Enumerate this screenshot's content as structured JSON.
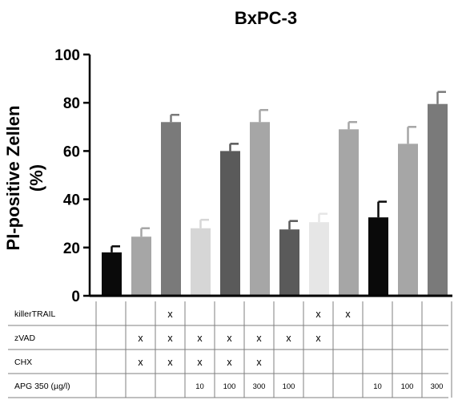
{
  "chart_data": {
    "type": "bar",
    "title": "BxPC-3",
    "ylabel_lines": [
      "PI-positive Zellen",
      "(%)"
    ],
    "ylim": [
      0,
      100
    ],
    "yticks": [
      "0",
      "20",
      "40",
      "60",
      "80",
      "100"
    ],
    "values": [
      18,
      24.5,
      72,
      28,
      60,
      72,
      27.5,
      30.5,
      69,
      32.5,
      63,
      79.5
    ],
    "errors": [
      2.5,
      3.5,
      3,
      3.5,
      3,
      5,
      3.5,
      3.5,
      3,
      6.5,
      7,
      5
    ],
    "colors": [
      "#0a0a0a",
      "#a6a6a6",
      "#7a7a7a",
      "#d6d6d6",
      "#5a5a5a",
      "#a6a6a6",
      "#5a5a5a",
      "#e6e6e6",
      "#a6a6a6",
      "#0a0a0a",
      "#a6a6a6",
      "#7a7a7a"
    ],
    "table": {
      "rows": [
        {
          "label": "killerTRAIL",
          "cells": [
            "",
            "",
            "x",
            "",
            "",
            "",
            "",
            "x",
            "x",
            "",
            "",
            ""
          ]
        },
        {
          "label": "zVAD",
          "cells": [
            "",
            "x",
            "x",
            "x",
            "x",
            "x",
            "x",
            "x",
            "",
            "",
            "",
            ""
          ]
        },
        {
          "label": "CHX",
          "cells": [
            "",
            "x",
            "x",
            "x",
            "x",
            "x",
            "",
            "",
            "",
            "",
            "",
            ""
          ]
        },
        {
          "label": "APG 350 (µg/l)",
          "cells": [
            "",
            "",
            "",
            "10",
            "100",
            "300",
            "100",
            "",
            "",
            "10",
            "100",
            "300"
          ]
        }
      ]
    }
  }
}
